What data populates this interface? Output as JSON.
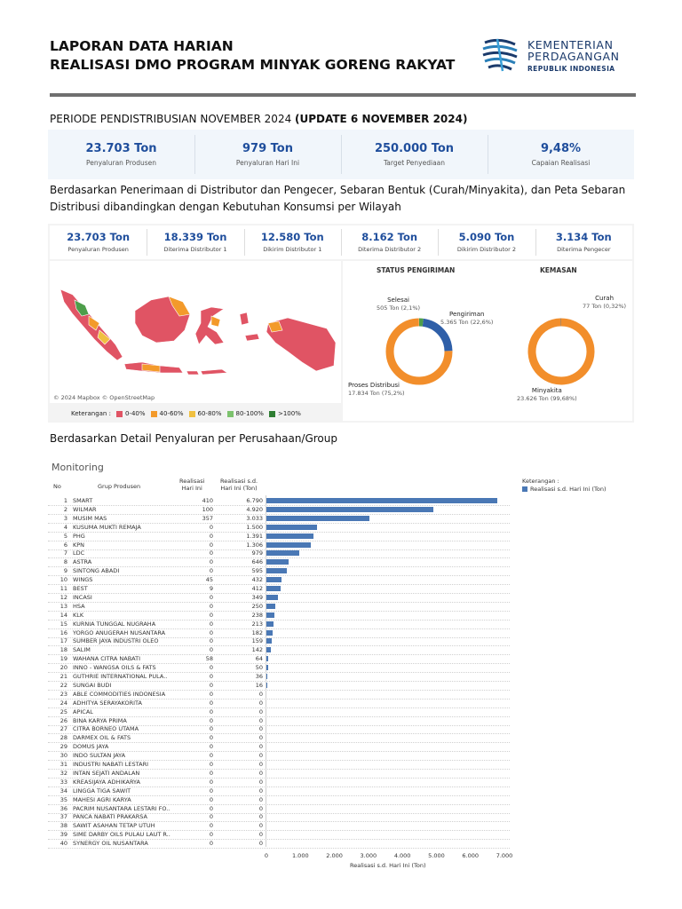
{
  "header": {
    "title_line1": "LAPORAN DATA HARIAN",
    "title_line2": "REALISASI DMO PROGRAM MINYAK GORENG RAKYAT",
    "logo_line1": "KEMENTERIAN",
    "logo_line2": "PERDAGANGAN",
    "logo_line3": "REPUBLIK INDONESIA"
  },
  "periode": {
    "text": "PERIODE PENDISTRIBUSIAN NOVEMBER 2024 ",
    "bold": "(UPDATE 6 NOVEMBER 2024)"
  },
  "kpis": [
    {
      "value": "23.703 Ton",
      "label": "Penyaluran Produsen"
    },
    {
      "value": "979 Ton",
      "label": "Penyaluran Hari Ini"
    },
    {
      "value": "250.000 Ton",
      "label": "Target Penyediaan"
    },
    {
      "value": "9,48%",
      "label": "Capaian Realisasi"
    }
  ],
  "description": "Berdasarkan Penerimaan di Distributor dan Pengecer, Sebaran Bentuk (Curah/Minyakita), dan Peta Sebaran Distribusi dibandingkan dengan Kebutuhan Konsumsi per Wilayah",
  "kpis2": [
    {
      "value": "23.703 Ton",
      "label": "Penyaluran Produsen"
    },
    {
      "value": "18.339 Ton",
      "label": "Diterima Distributor 1"
    },
    {
      "value": "12.580 Ton",
      "label": "Dikirim Distributor 1"
    },
    {
      "value": "8.162 Ton",
      "label": "Diterima Distributor 2"
    },
    {
      "value": "5.090 Ton",
      "label": "Dikirim Distributor 2"
    },
    {
      "value": "3.134 Ton",
      "label": "Diterima Pengecer"
    }
  ],
  "map": {
    "credit": "© 2024 Mapbox  © OpenStreetMap",
    "legend_title": "Keterangan :",
    "legend": [
      {
        "label": "0-40%",
        "color": "#e05464"
      },
      {
        "label": "40-60%",
        "color": "#f39a2b"
      },
      {
        "label": "60-80%",
        "color": "#f0c040"
      },
      {
        "label": "80-100%",
        "color": "#7cc26d"
      },
      {
        "label": ">100%",
        "color": "#2e7d32"
      }
    ]
  },
  "status": {
    "title": "STATUS PENGIRIMAN",
    "segments": [
      {
        "name": "Selesai",
        "value": "505 Ton (2,1%)",
        "fraction": 0.021,
        "color": "#4d9e4a"
      },
      {
        "name": "Pengiriman",
        "value": "5.365 Ton (22,6%)",
        "fraction": 0.226,
        "color": "#2f5fa8"
      },
      {
        "name": "Proses Distribusi",
        "value": "17.834 Ton (75,2%)",
        "fraction": 0.752,
        "color": "#f28e2b"
      }
    ]
  },
  "kemasan": {
    "title": "KEMASAN",
    "segments": [
      {
        "name": "Curah",
        "value": "77 Ton (0,32%)",
        "fraction": 0.0032,
        "color": "#7a6a5a"
      },
      {
        "name": "Minyakita",
        "value": "23.626 Ton (99,68%)",
        "fraction": 0.9968,
        "color": "#f28e2b"
      }
    ]
  },
  "description2": "Berdasarkan Detail Penyaluran per Perusahaan/Group",
  "monitoring": {
    "title": "Monitoring",
    "col_no": "No",
    "col_group": "Grup Produsen",
    "col_today": "Realisasi\nHari Ini",
    "col_total": "Realisasi s.d.\nHari Ini (Ton)",
    "legend_title": "Keterangan :",
    "legend_series": "Realisasi s.d. Hari Ini (Ton)",
    "xlabel": "Realisasi s.d. Hari Ini (Ton)",
    "xticks": [
      "0",
      "1.000",
      "2.000",
      "3.000",
      "4.000",
      "5.000",
      "6.000",
      "7.000"
    ]
  },
  "chart_data": {
    "type": "bar",
    "orientation": "horizontal",
    "xlabel": "Realisasi s.d. Hari Ini (Ton)",
    "xlim": [
      0,
      7000
    ],
    "rows": [
      {
        "no": "1",
        "name": "SMART",
        "today": "410",
        "total_label": "6.790",
        "total": 6790
      },
      {
        "no": "2",
        "name": "WILMAR",
        "today": "100",
        "total_label": "4.920",
        "total": 4920
      },
      {
        "no": "3",
        "name": "MUSIM MAS",
        "today": "357",
        "total_label": "3.033",
        "total": 3033
      },
      {
        "no": "4",
        "name": "KUSUMA MUKTI REMAJA",
        "today": "0",
        "total_label": "1.500",
        "total": 1500
      },
      {
        "no": "5",
        "name": "PHG",
        "today": "0",
        "total_label": "1.391",
        "total": 1391
      },
      {
        "no": "6",
        "name": "KPN",
        "today": "0",
        "total_label": "1.306",
        "total": 1306
      },
      {
        "no": "7",
        "name": "LDC",
        "today": "0",
        "total_label": "979",
        "total": 979
      },
      {
        "no": "8",
        "name": "ASTRA",
        "today": "0",
        "total_label": "646",
        "total": 646
      },
      {
        "no": "9",
        "name": "SINTONG ABADI",
        "today": "0",
        "total_label": "595",
        "total": 595
      },
      {
        "no": "10",
        "name": "WINGS",
        "today": "45",
        "total_label": "432",
        "total": 432
      },
      {
        "no": "11",
        "name": "BEST",
        "today": "9",
        "total_label": "412",
        "total": 412
      },
      {
        "no": "12",
        "name": "INCASI",
        "today": "0",
        "total_label": "349",
        "total": 349
      },
      {
        "no": "13",
        "name": "HSA",
        "today": "0",
        "total_label": "250",
        "total": 250
      },
      {
        "no": "14",
        "name": "KLK",
        "today": "0",
        "total_label": "238",
        "total": 238
      },
      {
        "no": "15",
        "name": "KURNIA TUNGGAL NUGRAHA",
        "today": "0",
        "total_label": "213",
        "total": 213
      },
      {
        "no": "16",
        "name": "YORGO ANUGERAH NUSANTARA",
        "today": "0",
        "total_label": "182",
        "total": 182
      },
      {
        "no": "17",
        "name": "SUMBER JAYA INDUSTRI OLEO",
        "today": "0",
        "total_label": "159",
        "total": 159
      },
      {
        "no": "18",
        "name": "SALIM",
        "today": "0",
        "total_label": "142",
        "total": 142
      },
      {
        "no": "19",
        "name": "WAHANA CITRA NABATI",
        "today": "58",
        "total_label": "64",
        "total": 64
      },
      {
        "no": "20",
        "name": "INNO - WANGSA OILS & FATS",
        "today": "0",
        "total_label": "50",
        "total": 50
      },
      {
        "no": "21",
        "name": "GUTHRIE INTERNATIONAL PULA..",
        "today": "0",
        "total_label": "36",
        "total": 36
      },
      {
        "no": "22",
        "name": "SUNGAI BUDI",
        "today": "0",
        "total_label": "16",
        "total": 16
      },
      {
        "no": "23",
        "name": "ABLE COMMODITIES INDONESIA",
        "today": "0",
        "total_label": "0",
        "total": 0
      },
      {
        "no": "24",
        "name": "ADHITYA SERAYAKORITA",
        "today": "0",
        "total_label": "0",
        "total": 0
      },
      {
        "no": "25",
        "name": "APICAL",
        "today": "0",
        "total_label": "0",
        "total": 0
      },
      {
        "no": "26",
        "name": "BINA KARYA PRIMA",
        "today": "0",
        "total_label": "0",
        "total": 0
      },
      {
        "no": "27",
        "name": "CITRA BORNEO UTAMA",
        "today": "0",
        "total_label": "0",
        "total": 0
      },
      {
        "no": "28",
        "name": "DARMEX OIL & FATS",
        "today": "0",
        "total_label": "0",
        "total": 0
      },
      {
        "no": "29",
        "name": "DOMUS JAYA",
        "today": "0",
        "total_label": "0",
        "total": 0
      },
      {
        "no": "30",
        "name": "INDO SULTAN JAYA",
        "today": "0",
        "total_label": "0",
        "total": 0
      },
      {
        "no": "31",
        "name": "INDUSTRI NABATI LESTARI",
        "today": "0",
        "total_label": "0",
        "total": 0
      },
      {
        "no": "32",
        "name": "INTAN SEJATI ANDALAN",
        "today": "0",
        "total_label": "0",
        "total": 0
      },
      {
        "no": "33",
        "name": "KREASIJAYA ADHIKARYA",
        "today": "0",
        "total_label": "0",
        "total": 0
      },
      {
        "no": "34",
        "name": "LINGGA TIGA SAWIT",
        "today": "0",
        "total_label": "0",
        "total": 0
      },
      {
        "no": "35",
        "name": "MAHESI AGRI KARYA",
        "today": "0",
        "total_label": "0",
        "total": 0
      },
      {
        "no": "36",
        "name": "PACRIM NUSANTARA LESTARI FO..",
        "today": "0",
        "total_label": "0",
        "total": 0
      },
      {
        "no": "37",
        "name": "PANCA NABATI PRAKARSA",
        "today": "0",
        "total_label": "0",
        "total": 0
      },
      {
        "no": "38",
        "name": "SAWIT ASAHAN TETAP UTUH",
        "today": "0",
        "total_label": "0",
        "total": 0
      },
      {
        "no": "39",
        "name": "SIME DARBY OILS PULAU LAUT R..",
        "today": "0",
        "total_label": "0",
        "total": 0
      },
      {
        "no": "40",
        "name": "SYNERGY OIL NUSANTARA",
        "today": "0",
        "total_label": "0",
        "total": 0
      }
    ]
  }
}
